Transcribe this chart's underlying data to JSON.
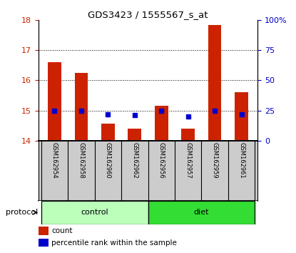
{
  "title": "GDS3423 / 1555567_s_at",
  "samples": [
    "GSM162954",
    "GSM162958",
    "GSM162960",
    "GSM162962",
    "GSM162956",
    "GSM162957",
    "GSM162959",
    "GSM162961"
  ],
  "protocol_groups": [
    {
      "label": "control",
      "indices": [
        0,
        1,
        2,
        3
      ],
      "color": "#bbffbb"
    },
    {
      "label": "diet",
      "indices": [
        4,
        5,
        6,
        7
      ],
      "color": "#33dd33"
    }
  ],
  "red_bar_values": [
    16.6,
    16.25,
    14.55,
    14.4,
    15.15,
    14.4,
    17.85,
    15.6
  ],
  "blue_dot_values": [
    25,
    25,
    22,
    21,
    25,
    20,
    25,
    22
  ],
  "ylim_left": [
    14,
    18
  ],
  "ylim_right": [
    0,
    100
  ],
  "yticks_left": [
    14,
    15,
    16,
    17,
    18
  ],
  "yticks_right": [
    0,
    25,
    50,
    75,
    100
  ],
  "ytick_labels_right": [
    "0",
    "25",
    "50",
    "75",
    "100%"
  ],
  "grid_lines": [
    15,
    16,
    17
  ],
  "bar_color": "#cc2200",
  "dot_color": "#0000cc",
  "bar_width": 0.5,
  "left_tick_color": "#cc2200",
  "right_tick_color": "#0000cc",
  "protocol_label": "protocol",
  "legend_count_label": "count",
  "legend_percentile_label": "percentile rank within the sample",
  "bg_white": "#ffffff",
  "bg_gray": "#cccccc"
}
